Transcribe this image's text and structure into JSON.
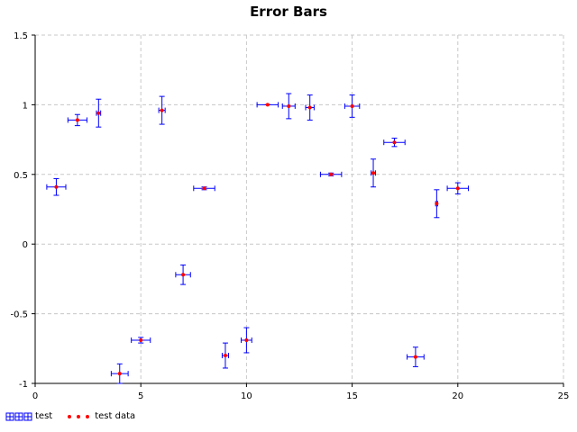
{
  "chart_data": {
    "type": "scatter",
    "title": "Error Bars",
    "xlabel": "",
    "ylabel": "",
    "xlim": [
      0,
      25
    ],
    "ylim": [
      -1,
      1.5
    ],
    "x_ticks": [
      "0",
      "5",
      "10",
      "15",
      "20",
      "25"
    ],
    "y_ticks": [
      "-1",
      "-0.5",
      "0",
      "0.5",
      "1",
      "1.5"
    ],
    "grid": true,
    "legend_position": "bottom-left",
    "series": [
      {
        "name": "test",
        "style": "error-bars",
        "color": "#0000ff",
        "points": [
          {
            "x": 1,
            "y": 0.41,
            "xerr": 0.45,
            "yerr": 0.06
          },
          {
            "x": 2,
            "y": 0.89,
            "xerr": 0.45,
            "yerr": 0.04
          },
          {
            "x": 3,
            "y": 0.94,
            "xerr": 0.1,
            "yerr": 0.1
          },
          {
            "x": 4,
            "y": -0.93,
            "xerr": 0.4,
            "yerr": 0.07
          },
          {
            "x": 5,
            "y": -0.69,
            "xerr": 0.45,
            "yerr": 0.02
          },
          {
            "x": 6,
            "y": 0.96,
            "xerr": 0.15,
            "yerr": 0.1
          },
          {
            "x": 7,
            "y": -0.22,
            "xerr": 0.35,
            "yerr": 0.07
          },
          {
            "x": 8,
            "y": 0.4,
            "xerr": 0.5,
            "yerr": 0.01
          },
          {
            "x": 9,
            "y": -0.8,
            "xerr": 0.15,
            "yerr": 0.09
          },
          {
            "x": 10,
            "y": -0.69,
            "xerr": 0.25,
            "yerr": 0.09
          },
          {
            "x": 11,
            "y": 1.0,
            "xerr": 0.5,
            "yerr": 0.0
          },
          {
            "x": 12,
            "y": 0.99,
            "xerr": 0.3,
            "yerr": 0.09
          },
          {
            "x": 13,
            "y": 0.98,
            "xerr": 0.2,
            "yerr": 0.09
          },
          {
            "x": 14,
            "y": 0.5,
            "xerr": 0.5,
            "yerr": 0.01
          },
          {
            "x": 15,
            "y": 0.99,
            "xerr": 0.35,
            "yerr": 0.08
          },
          {
            "x": 16,
            "y": 0.51,
            "xerr": 0.1,
            "yerr": 0.1
          },
          {
            "x": 17,
            "y": 0.73,
            "xerr": 0.5,
            "yerr": 0.03
          },
          {
            "x": 18,
            "y": -0.81,
            "xerr": 0.4,
            "yerr": 0.07
          },
          {
            "x": 19,
            "y": 0.29,
            "xerr": 0.05,
            "yerr": 0.1
          },
          {
            "x": 20,
            "y": 0.4,
            "xerr": 0.5,
            "yerr": 0.04
          }
        ]
      },
      {
        "name": "test data",
        "style": "dots",
        "color": "#ff0000",
        "points": [
          {
            "x": 1,
            "y": 0.41
          },
          {
            "x": 2,
            "y": 0.89
          },
          {
            "x": 3,
            "y": 0.94
          },
          {
            "x": 4,
            "y": -0.93
          },
          {
            "x": 5,
            "y": -0.69
          },
          {
            "x": 6,
            "y": 0.96
          },
          {
            "x": 7,
            "y": -0.22
          },
          {
            "x": 8,
            "y": 0.4
          },
          {
            "x": 9,
            "y": -0.8
          },
          {
            "x": 10,
            "y": -0.69
          },
          {
            "x": 11,
            "y": 1.0
          },
          {
            "x": 12,
            "y": 0.99
          },
          {
            "x": 13,
            "y": 0.98
          },
          {
            "x": 14,
            "y": 0.5
          },
          {
            "x": 15,
            "y": 0.99
          },
          {
            "x": 16,
            "y": 0.51
          },
          {
            "x": 17,
            "y": 0.73
          },
          {
            "x": 18,
            "y": -0.81
          },
          {
            "x": 19,
            "y": 0.29
          },
          {
            "x": 20,
            "y": 0.4
          }
        ]
      }
    ]
  }
}
